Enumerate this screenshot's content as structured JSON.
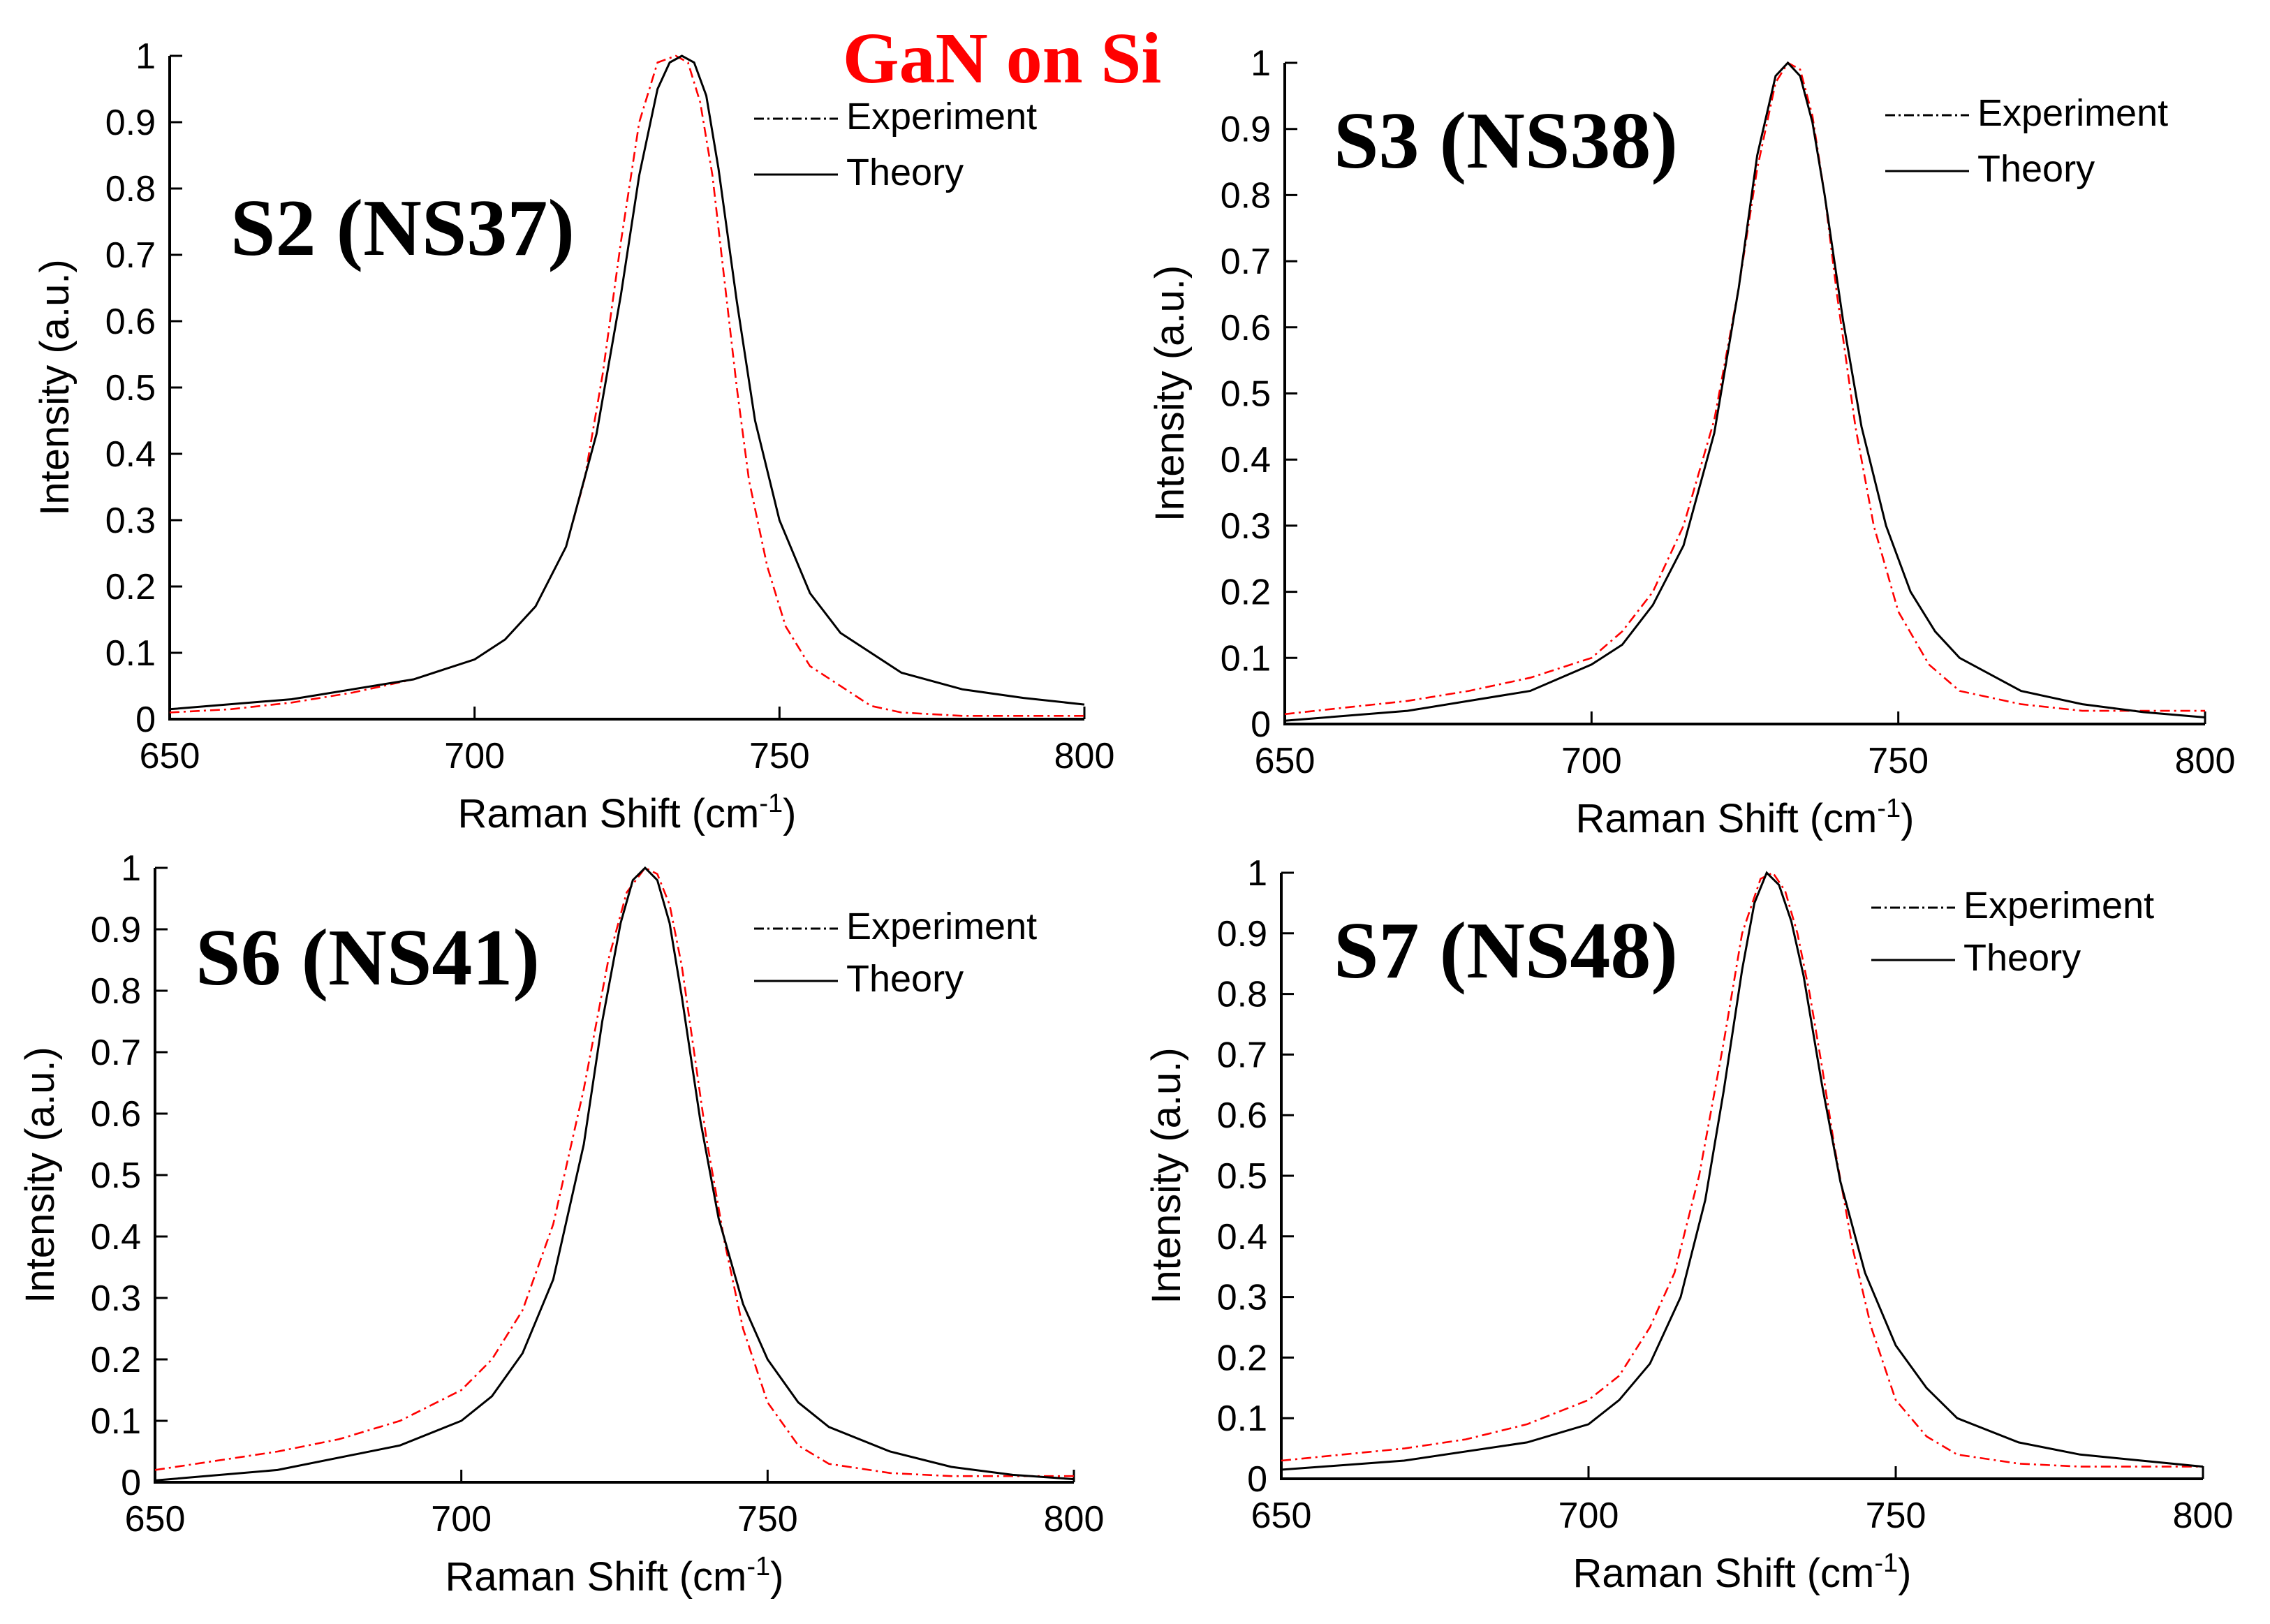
{
  "figure_title": "GaN on Si",
  "colors": {
    "title": "#ff0000",
    "experiment": "#ff0000",
    "theory": "#000000"
  },
  "chart_data": [
    {
      "type": "line",
      "panel_title": "S2 (NS37)",
      "xlabel": "Raman  Shift (cm",
      "xlabel_sup": "-1",
      "xlabel_close": ")",
      "ylabel": "Intensity (a.u.)",
      "xlim": [
        650,
        800
      ],
      "ylim": [
        0,
        1
      ],
      "xticks": [
        650,
        700,
        750,
        800
      ],
      "yticks": [
        "0",
        "0.1",
        "0.2",
        "0.3",
        "0.4",
        "0.5",
        "0.6",
        "0.7",
        "0.8",
        "0.9",
        "1"
      ],
      "legend": [
        "Experiment",
        "Theory"
      ],
      "series": [
        {
          "name": "Experiment",
          "style": "dash-dot",
          "color": "#ff0000",
          "x": [
            650,
            660,
            670,
            680,
            690,
            700,
            705,
            710,
            715,
            718,
            721,
            724,
            727,
            730,
            733,
            735,
            737,
            739,
            741,
            743,
            745,
            748,
            751,
            755,
            760,
            765,
            770,
            780,
            790,
            800
          ],
          "y": [
            0.01,
            0.015,
            0.025,
            0.04,
            0.06,
            0.09,
            0.12,
            0.17,
            0.26,
            0.36,
            0.52,
            0.72,
            0.9,
            0.99,
            1.0,
            0.99,
            0.93,
            0.82,
            0.66,
            0.5,
            0.36,
            0.23,
            0.14,
            0.08,
            0.05,
            0.02,
            0.01,
            0.005,
            0.005,
            0.005
          ]
        },
        {
          "name": "Theory",
          "style": "solid",
          "color": "#000000",
          "x": [
            650,
            670,
            690,
            700,
            705,
            710,
            715,
            720,
            724,
            727,
            730,
            732,
            734,
            736,
            738,
            740,
            743,
            746,
            750,
            755,
            760,
            770,
            780,
            790,
            800
          ],
          "y": [
            0.015,
            0.03,
            0.06,
            0.09,
            0.12,
            0.17,
            0.26,
            0.43,
            0.64,
            0.82,
            0.95,
            0.99,
            1.0,
            0.99,
            0.94,
            0.83,
            0.63,
            0.45,
            0.3,
            0.19,
            0.13,
            0.07,
            0.045,
            0.032,
            0.022
          ]
        }
      ]
    },
    {
      "type": "line",
      "panel_title": "S3 (NS38)",
      "xlabel": "Raman  Shift (cm",
      "xlabel_sup": "-1",
      "xlabel_close": ")",
      "ylabel": "Intensity (a.u.)",
      "xlim": [
        650,
        800
      ],
      "ylim": [
        0,
        1
      ],
      "xticks": [
        650,
        700,
        750,
        800
      ],
      "yticks": [
        "0",
        "0.1",
        "0.2",
        "0.3",
        "0.4",
        "0.5",
        "0.6",
        "0.7",
        "0.8",
        "0.9",
        "1"
      ],
      "legend": [
        "Experiment",
        "Theory"
      ],
      "series": [
        {
          "name": "Experiment",
          "style": "dash-dot",
          "color": "#ff0000",
          "x": [
            650,
            660,
            670,
            680,
            690,
            700,
            705,
            710,
            715,
            720,
            724,
            727,
            730,
            732,
            734,
            736,
            738,
            740,
            743,
            746,
            750,
            755,
            760,
            770,
            780,
            790,
            800
          ],
          "y": [
            0.015,
            0.025,
            0.035,
            0.05,
            0.07,
            0.1,
            0.14,
            0.2,
            0.3,
            0.46,
            0.66,
            0.84,
            0.97,
            1.0,
            0.99,
            0.92,
            0.8,
            0.65,
            0.45,
            0.3,
            0.17,
            0.09,
            0.05,
            0.03,
            0.02,
            0.02,
            0.02
          ]
        },
        {
          "name": "Theory",
          "style": "solid",
          "color": "#000000",
          "x": [
            650,
            670,
            690,
            700,
            705,
            710,
            715,
            720,
            724,
            727,
            730,
            732,
            734,
            736,
            738,
            741,
            744,
            748,
            752,
            756,
            760,
            770,
            780,
            790,
            800
          ],
          "y": [
            0.005,
            0.02,
            0.05,
            0.09,
            0.12,
            0.18,
            0.27,
            0.44,
            0.66,
            0.86,
            0.98,
            1.0,
            0.98,
            0.91,
            0.8,
            0.61,
            0.45,
            0.3,
            0.2,
            0.14,
            0.1,
            0.05,
            0.03,
            0.018,
            0.01
          ]
        }
      ]
    },
    {
      "type": "line",
      "panel_title": "S6 (NS41)",
      "xlabel": "Raman  Shift (cm",
      "xlabel_sup": "-1",
      "xlabel_close": ")",
      "ylabel": "Intensity (a.u.)",
      "xlim": [
        650,
        800
      ],
      "ylim": [
        0,
        1
      ],
      "xticks": [
        650,
        700,
        750,
        800
      ],
      "yticks": [
        "0",
        "0.1",
        "0.2",
        "0.3",
        "0.4",
        "0.5",
        "0.6",
        "0.7",
        "0.8",
        "0.9",
        "1"
      ],
      "legend": [
        "Experiment",
        "Theory"
      ],
      "series": [
        {
          "name": "Experiment",
          "style": "dash-dot",
          "color": "#ff0000",
          "x": [
            650,
            660,
            670,
            680,
            690,
            700,
            705,
            710,
            715,
            720,
            724,
            727,
            730,
            732,
            734,
            736,
            738,
            740,
            743,
            746,
            750,
            755,
            760,
            770,
            780,
            790,
            800
          ],
          "y": [
            0.02,
            0.035,
            0.05,
            0.07,
            0.1,
            0.15,
            0.2,
            0.28,
            0.42,
            0.64,
            0.85,
            0.96,
            1.0,
            0.99,
            0.94,
            0.84,
            0.7,
            0.56,
            0.39,
            0.25,
            0.13,
            0.06,
            0.03,
            0.015,
            0.01,
            0.01,
            0.01
          ]
        },
        {
          "name": "Theory",
          "style": "solid",
          "color": "#000000",
          "x": [
            650,
            670,
            690,
            700,
            705,
            710,
            715,
            720,
            723,
            726,
            728,
            730,
            732,
            734,
            736,
            739,
            742,
            746,
            750,
            755,
            760,
            770,
            780,
            790,
            800
          ],
          "y": [
            0.003,
            0.02,
            0.06,
            0.1,
            0.14,
            0.21,
            0.33,
            0.55,
            0.75,
            0.91,
            0.98,
            1.0,
            0.98,
            0.91,
            0.79,
            0.59,
            0.43,
            0.29,
            0.2,
            0.13,
            0.09,
            0.05,
            0.025,
            0.012,
            0.005
          ]
        }
      ]
    },
    {
      "type": "line",
      "panel_title": "S7 (NS48)",
      "xlabel": "Raman  Shift (cm",
      "xlabel_sup": "-1",
      "xlabel_close": ")",
      "ylabel": "Intensity (a.u.)",
      "xlim": [
        650,
        800
      ],
      "ylim": [
        0,
        1
      ],
      "xticks": [
        650,
        700,
        750,
        800
      ],
      "yticks": [
        "0",
        "0.1",
        "0.2",
        "0.3",
        "0.4",
        "0.5",
        "0.6",
        "0.7",
        "0.8",
        "0.9",
        "1"
      ],
      "legend": [
        "Experiment",
        "Theory"
      ],
      "series": [
        {
          "name": "Experiment",
          "style": "dash-dot",
          "color": "#ff0000",
          "x": [
            650,
            660,
            670,
            680,
            690,
            700,
            705,
            710,
            714,
            718,
            722,
            725,
            728,
            730,
            732,
            734,
            736,
            738,
            740,
            743,
            746,
            750,
            755,
            760,
            770,
            780,
            790,
            800
          ],
          "y": [
            0.03,
            0.04,
            0.05,
            0.065,
            0.09,
            0.13,
            0.17,
            0.25,
            0.34,
            0.5,
            0.72,
            0.9,
            0.99,
            1.0,
            0.97,
            0.9,
            0.8,
            0.68,
            0.55,
            0.38,
            0.25,
            0.13,
            0.07,
            0.04,
            0.025,
            0.02,
            0.02,
            0.02
          ]
        },
        {
          "name": "Theory",
          "style": "solid",
          "color": "#000000",
          "x": [
            650,
            670,
            690,
            700,
            705,
            710,
            715,
            719,
            722,
            725,
            727,
            729,
            731,
            733,
            735,
            738,
            741,
            745,
            750,
            755,
            760,
            770,
            780,
            790,
            800
          ],
          "y": [
            0.015,
            0.03,
            0.06,
            0.09,
            0.13,
            0.19,
            0.3,
            0.46,
            0.64,
            0.84,
            0.95,
            1.0,
            0.98,
            0.92,
            0.83,
            0.65,
            0.49,
            0.34,
            0.22,
            0.15,
            0.1,
            0.06,
            0.04,
            0.03,
            0.02
          ]
        }
      ]
    }
  ]
}
